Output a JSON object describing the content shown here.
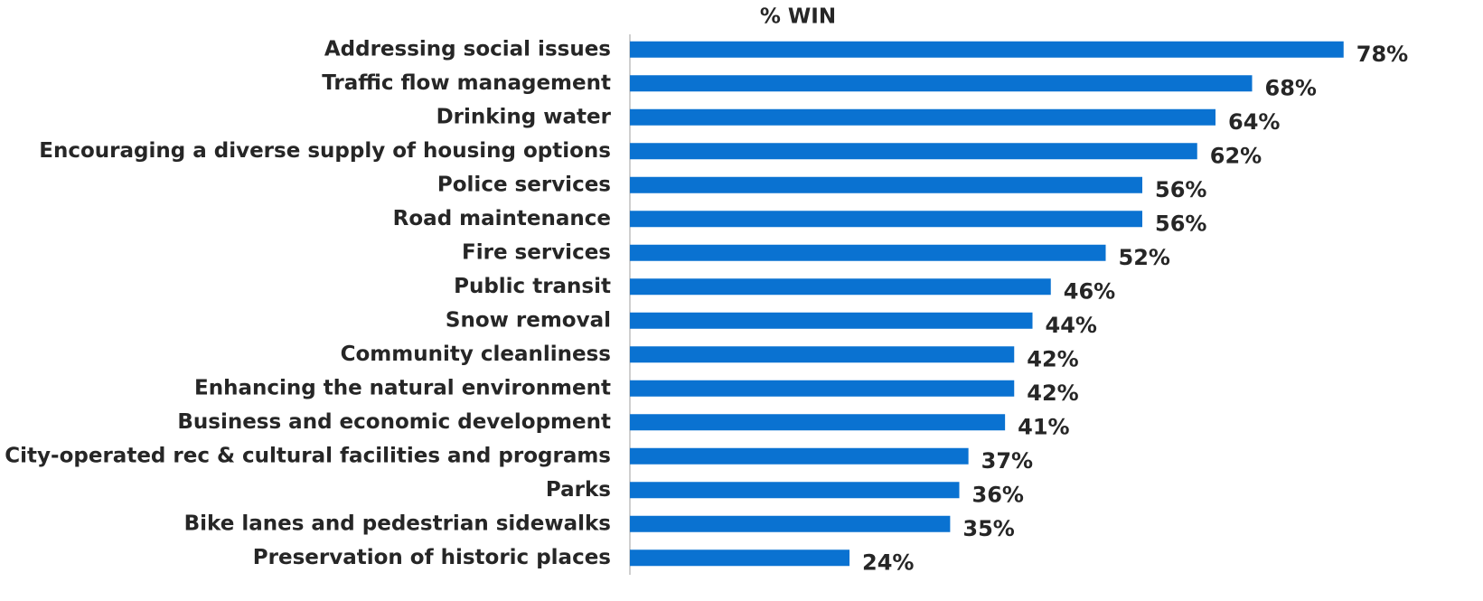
{
  "chart_data": {
    "type": "bar",
    "orientation": "horizontal",
    "title": "% WIN",
    "categories": [
      "Addressing social issues",
      "Traffic flow management",
      "Drinking water",
      "Encouraging a diverse supply of housing options",
      "Police services",
      "Road maintenance",
      "Fire services",
      "Public transit",
      "Snow removal",
      "Community cleanliness",
      "Enhancing the natural environment",
      "Business and economic development",
      "City-operated rec & cultural facilities and programs",
      "Parks",
      "Bike lanes and pedestrian sidewalks",
      "Preservation of historic places"
    ],
    "values": [
      78,
      68,
      64,
      62,
      56,
      56,
      52,
      46,
      44,
      42,
      42,
      41,
      37,
      36,
      35,
      24
    ],
    "value_labels": [
      "78%",
      "68%",
      "64%",
      "62%",
      "56%",
      "56%",
      "52%",
      "46%",
      "44%",
      "42%",
      "42%",
      "41%",
      "37%",
      "36%",
      "35%",
      "24%"
    ],
    "color": "#0a72d1",
    "xlim": [
      0,
      80
    ]
  }
}
